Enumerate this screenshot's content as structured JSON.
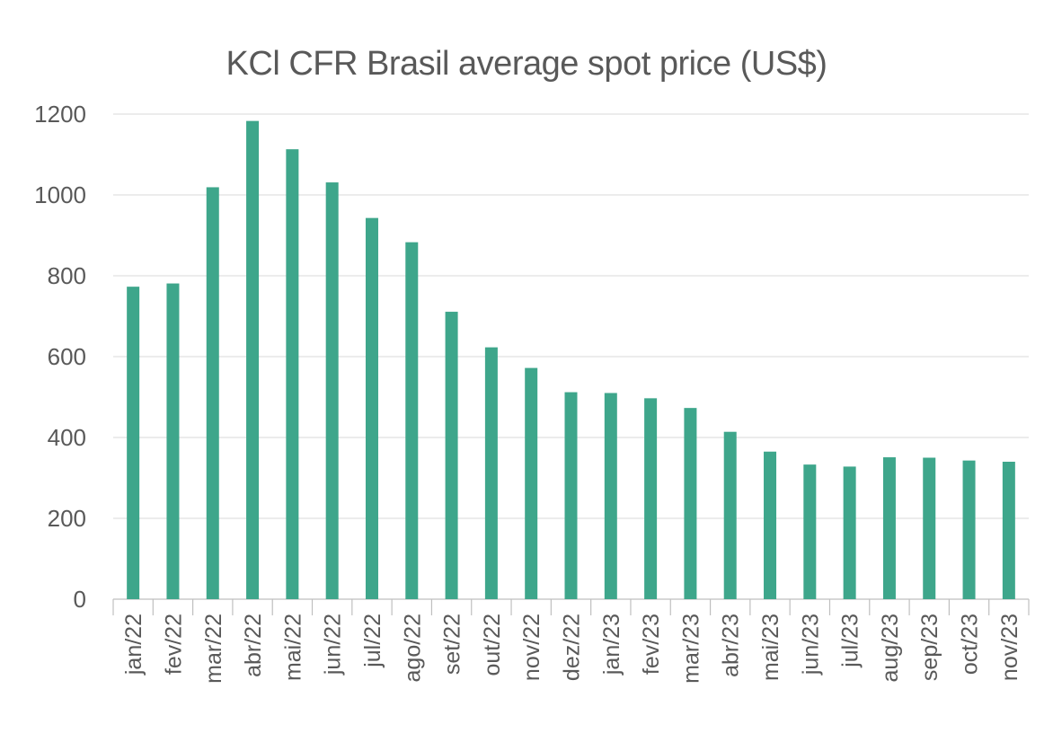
{
  "chart_data": {
    "type": "bar",
    "title": "KCl CFR Brasil average spot price (US$)",
    "xlabel": "",
    "ylabel": "",
    "ylim": [
      0,
      1200
    ],
    "yticks": [
      0,
      200,
      400,
      600,
      800,
      1000,
      1200
    ],
    "grid": true,
    "bar_color": "#3ea68b",
    "categories": [
      "jan/22",
      "fev/22",
      "mar/22",
      "abr/22",
      "mai/22",
      "jun/22",
      "jul/22",
      "ago/22",
      "set/22",
      "out/22",
      "nov/22",
      "dez/22",
      "jan/23",
      "fev/23",
      "mar/23",
      "abr/23",
      "mai/23",
      "jun/23",
      "jul/23",
      "aug/23",
      "sep/23",
      "oct/23",
      "nov/23"
    ],
    "values": [
      773,
      781,
      1019,
      1183,
      1113,
      1031,
      943,
      883,
      711,
      623,
      572,
      512,
      510,
      497,
      473,
      414,
      365,
      333,
      328,
      351,
      350,
      343,
      340
    ]
  }
}
